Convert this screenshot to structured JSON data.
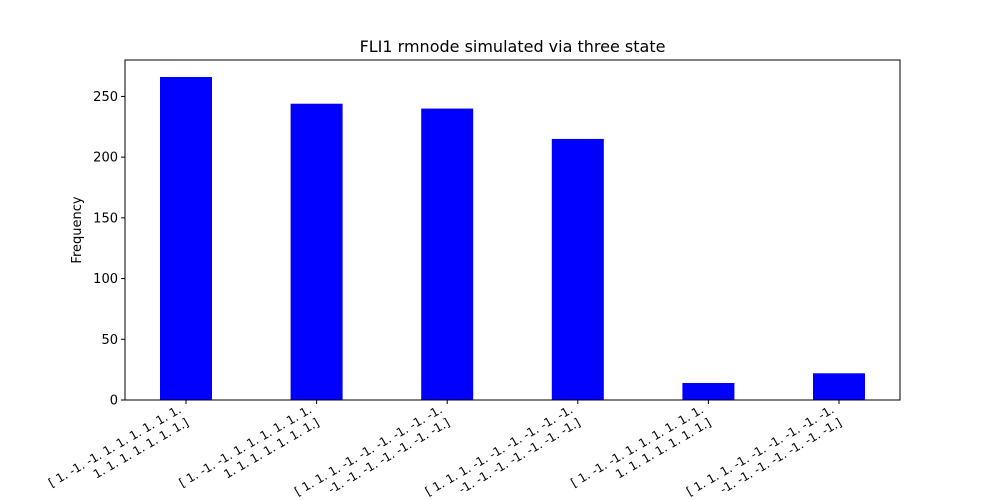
{
  "chart_data": {
    "type": "bar",
    "title": "FLI1 rmnode simulated via three state",
    "xlabel": "",
    "ylabel": "Frequency",
    "ylim": [
      0,
      280
    ],
    "yticks": [
      0,
      50,
      100,
      150,
      200,
      250
    ],
    "bar_color": "#0000ff",
    "categories": [
      [
        "[ 1. -1. -1. 1. 1. 1. 1. 1. 1.",
        " 1. 1. 1. 1. 1. 1. 1.]"
      ],
      [
        "[ 1. -1. -1. 1. 1. 1. 1. 1. 1.",
        " 1. 1. 1. 1. 1. 1. 1.]"
      ],
      [
        "[ 1. 1. 1. -1. -1. -1. -1. -1. -1.",
        "-1. -1. -1. -1. -1. -1. -1.]"
      ],
      [
        "[ 1. 1. 1. -1. -1. -1. -1. -1. -1.",
        "-1. -1. -1. -1. -1. -1. -1.]"
      ],
      [
        "[ 1. -1. -1. 1. 1. 1. 1. 1. 1.",
        " 1. 1. 1. 1. 1. 1. 1.]"
      ],
      [
        "[ 1. 1. 1. -1. -1. -1. -1. -1. -1.",
        "-1. -1. -1. -1. -1. -1. -1.]"
      ]
    ],
    "values": [
      266,
      244,
      240,
      215,
      14,
      22
    ],
    "grid": false,
    "legend": "none"
  }
}
